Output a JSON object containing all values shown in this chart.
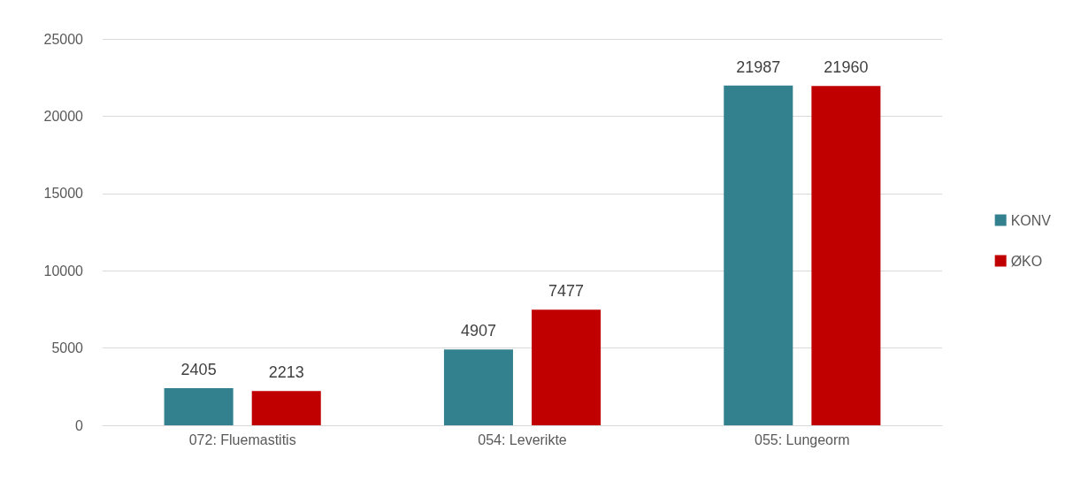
{
  "chart_data": {
    "type": "bar",
    "categories": [
      "072: Fluemastitis",
      "054: Leverikte",
      "055: Lungeorm"
    ],
    "series": [
      {
        "name": "KONV",
        "color": "#33808f",
        "values": [
          2405,
          4907,
          21987
        ]
      },
      {
        "name": "ØKO",
        "color": "#c00000",
        "values": [
          2213,
          7477,
          21960
        ]
      }
    ],
    "ylim": [
      0,
      25000
    ],
    "yticks": [
      0,
      5000,
      10000,
      15000,
      20000,
      25000
    ],
    "grid": "y",
    "legend": "right",
    "data_labels": true
  }
}
